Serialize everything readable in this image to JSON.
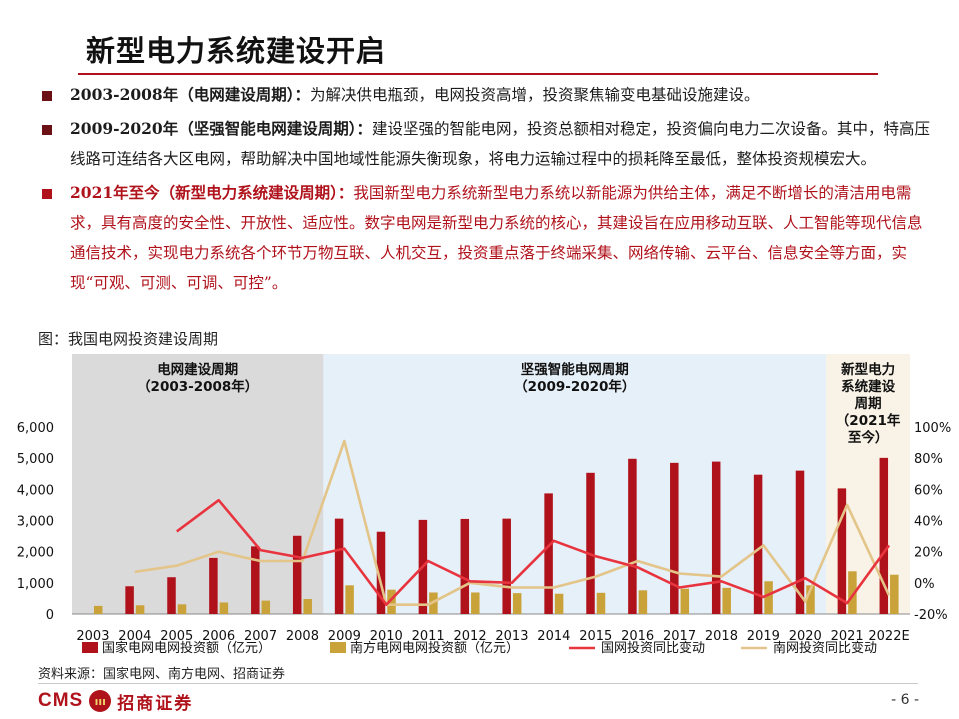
{
  "title": "新型电力系统建设开启",
  "bullets": [
    {
      "lead": "2003-2008年（电网建设周期）：",
      "text": "为解决供电瓶颈，电网投资高增，投资聚焦输变电基础设施建设。"
    },
    {
      "lead": "2009-2020年（坚强智能电网建设周期）：",
      "text": "建设坚强的智能电网，投资总额相对稳定，投资偏向电力二次设备。其中，特高压线路可连结各大区电网，帮助解决中国地域性能源失衡现象，将电力运输过程中的损耗降至最低，整体投资规模宏大。"
    },
    {
      "lead": "2021年至今（新型电力系统建设周期）：",
      "text": "我国新型电力系统新型电力系统以新能源为供给主体，满足不断增长的清洁用电需求，具有高度的安全性、开放性、适应性。数字电网是新型电力系统的核心，其建设旨在应用移动互联、人工智能等现代信息通信技术，实现电力系统各个环节万物互联、人机交互，投资重点落于终端采集、网络传输、云平台、信息安全等方面，实现“可观、可测、可调、可控”。"
    }
  ],
  "figure_caption": "图：我国电网投资建设周期",
  "source": "资料来源：国家电网、南方电网、招商证券",
  "footer": {
    "logo_text": "CMS",
    "logo_mark": "ııı",
    "logo_cn": "招商证券",
    "page": "- 6 -"
  },
  "colors": {
    "sgcc": "#b0121b",
    "csg": "#c9a23a",
    "sgcc_line": "#e8343e",
    "csg_line": "#e3c489",
    "period1": "#dadada",
    "period2": "#e6f0f8",
    "period3": "#f8f3e6"
  },
  "chart_data": {
    "type": "bar",
    "categories": [
      "2003",
      "2004",
      "2005",
      "2006",
      "2007",
      "2008",
      "2009",
      "2010",
      "2011",
      "2012",
      "2013",
      "2014",
      "2015",
      "2016",
      "2017",
      "2018",
      "2019",
      "2020",
      "2021",
      "2022E"
    ],
    "series": [
      {
        "name": "国家电网电网投资额（亿元）",
        "kind": "bar",
        "axis": "left",
        "values": [
          null,
          890,
          1180,
          1800,
          2170,
          2510,
          3060,
          2640,
          3020,
          3050,
          3060,
          3870,
          4530,
          4980,
          4850,
          4890,
          4470,
          4600,
          4030,
          5010
        ]
      },
      {
        "name": "南方电网电网投资额（亿元）",
        "kind": "bar",
        "axis": "left",
        "values": [
          260,
          280,
          310,
          370,
          430,
          480,
          920,
          780,
          690,
          690,
          670,
          650,
          680,
          760,
          810,
          840,
          1050,
          920,
          1370,
          1260
        ]
      },
      {
        "name": "国网投资同比变动",
        "kind": "line",
        "axis": "right",
        "values": [
          null,
          null,
          33,
          53,
          21,
          16,
          22,
          -14,
          14,
          1,
          0,
          27,
          17,
          10,
          -3,
          1,
          -9,
          3,
          -13,
          24
        ]
      },
      {
        "name": "南网投资同比变动",
        "kind": "line",
        "axis": "right",
        "values": [
          null,
          7,
          11,
          20,
          14,
          14,
          91,
          -14,
          -14,
          0,
          -3,
          -3,
          4,
          14,
          6,
          4,
          24,
          -12,
          50,
          -8
        ]
      }
    ],
    "ylim_left": [
      0,
      6000
    ],
    "yticks_left": [
      "0",
      "1,000",
      "2,000",
      "3,000",
      "4,000",
      "5,000",
      "6,000"
    ],
    "ylim_right": [
      -20,
      100
    ],
    "yticks_right": [
      "-20%",
      "0%",
      "20%",
      "40%",
      "60%",
      "80%",
      "100%"
    ],
    "periods": [
      {
        "title": "电网建设周期",
        "subtitle": "（2003-2008年）",
        "from": "2003",
        "to": "2008"
      },
      {
        "title": "坚强智能电网周期",
        "subtitle": "（2009-2020年）",
        "from": "2009",
        "to": "2020"
      },
      {
        "title": "新型电力系统建设周期",
        "title_lines": [
          "新型电力",
          "系统建设",
          "周期"
        ],
        "subtitle_lines": [
          "（2021年",
          "至今）"
        ],
        "from": "2021",
        "to": "2022E"
      }
    ],
    "legend_position": "bottom",
    "grid": false
  }
}
